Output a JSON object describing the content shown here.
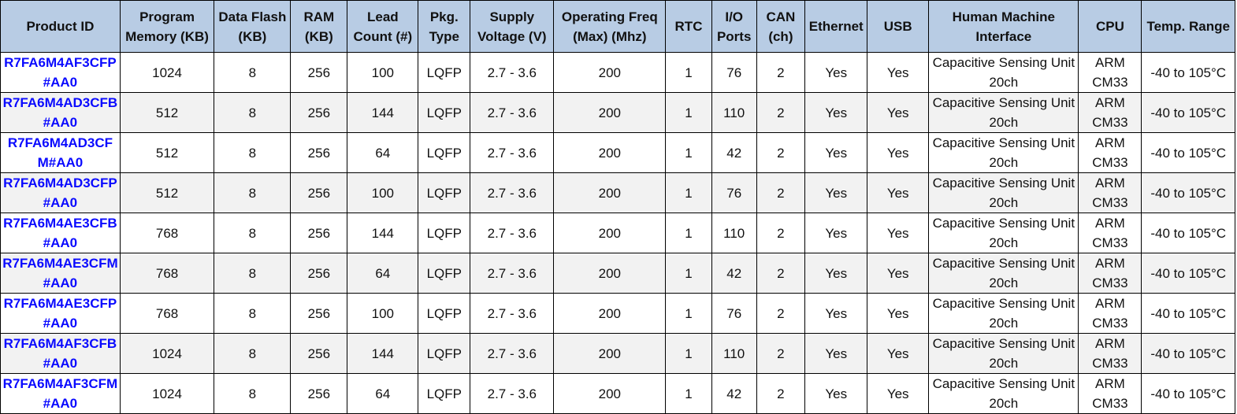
{
  "headers": [
    "Product ID",
    "Program Memory (KB)",
    "Data Flash (KB)",
    "RAM (KB)",
    "Lead Count (#)",
    "Pkg. Type",
    "Supply Voltage (V)",
    "Operating Freq (Max) (Mhz)",
    "RTC",
    "I/O Ports",
    "CAN (ch)",
    "Ethernet",
    "USB",
    "Human Machine Interface",
    "CPU",
    "Temp. Range"
  ],
  "rows": [
    [
      "R7FA6M4AF3CFP#AA0",
      "1024",
      "8",
      "256",
      "100",
      "LQFP",
      "2.7 - 3.6",
      "200",
      "1",
      "76",
      "2",
      "Yes",
      "Yes",
      "Capacitive Sensing Unit 20ch",
      "ARM CM33",
      "-40 to 105°C"
    ],
    [
      "R7FA6M4AD3CFB#AA0",
      "512",
      "8",
      "256",
      "144",
      "LQFP",
      "2.7 - 3.6",
      "200",
      "1",
      "110",
      "2",
      "Yes",
      "Yes",
      "Capacitive Sensing Unit 20ch",
      "ARM CM33",
      "-40 to 105°C"
    ],
    [
      "R7FA6M4AD3CFM#AA0",
      "512",
      "8",
      "256",
      "64",
      "LQFP",
      "2.7 - 3.6",
      "200",
      "1",
      "42",
      "2",
      "Yes",
      "Yes",
      "Capacitive Sensing Unit 20ch",
      "ARM CM33",
      "-40 to 105°C"
    ],
    [
      "R7FA6M4AD3CFP#AA0",
      "512",
      "8",
      "256",
      "100",
      "LQFP",
      "2.7 - 3.6",
      "200",
      "1",
      "76",
      "2",
      "Yes",
      "Yes",
      "Capacitive Sensing Unit 20ch",
      "ARM CM33",
      "-40 to 105°C"
    ],
    [
      "R7FA6M4AE3CFB#AA0",
      "768",
      "8",
      "256",
      "144",
      "LQFP",
      "2.7 - 3.6",
      "200",
      "1",
      "110",
      "2",
      "Yes",
      "Yes",
      "Capacitive Sensing Unit 20ch",
      "ARM CM33",
      "-40 to 105°C"
    ],
    [
      "R7FA6M4AE3CFM#AA0",
      "768",
      "8",
      "256",
      "64",
      "LQFP",
      "2.7 - 3.6",
      "200",
      "1",
      "42",
      "2",
      "Yes",
      "Yes",
      "Capacitive Sensing Unit 20ch",
      "ARM CM33",
      "-40 to 105°C"
    ],
    [
      "R7FA6M4AE3CFP#AA0",
      "768",
      "8",
      "256",
      "100",
      "LQFP",
      "2.7 - 3.6",
      "200",
      "1",
      "76",
      "2",
      "Yes",
      "Yes",
      "Capacitive Sensing Unit 20ch",
      "ARM CM33",
      "-40 to 105°C"
    ],
    [
      "R7FA6M4AF3CFB#AA0",
      "1024",
      "8",
      "256",
      "144",
      "LQFP",
      "2.7 - 3.6",
      "200",
      "1",
      "110",
      "2",
      "Yes",
      "Yes",
      "Capacitive Sensing Unit 20ch",
      "ARM CM33",
      "-40 to 105°C"
    ],
    [
      "R7FA6M4AF3CFM#AA0",
      "1024",
      "8",
      "256",
      "64",
      "LQFP",
      "2.7 - 3.6",
      "200",
      "1",
      "42",
      "2",
      "Yes",
      "Yes",
      "Capacitive Sensing Unit 20ch",
      "ARM CM33",
      "-40 to 105°C"
    ]
  ],
  "colors": {
    "header_bg": "#b8cce4",
    "link": "#0a0aff",
    "stripe": "#f2f2f2"
  }
}
